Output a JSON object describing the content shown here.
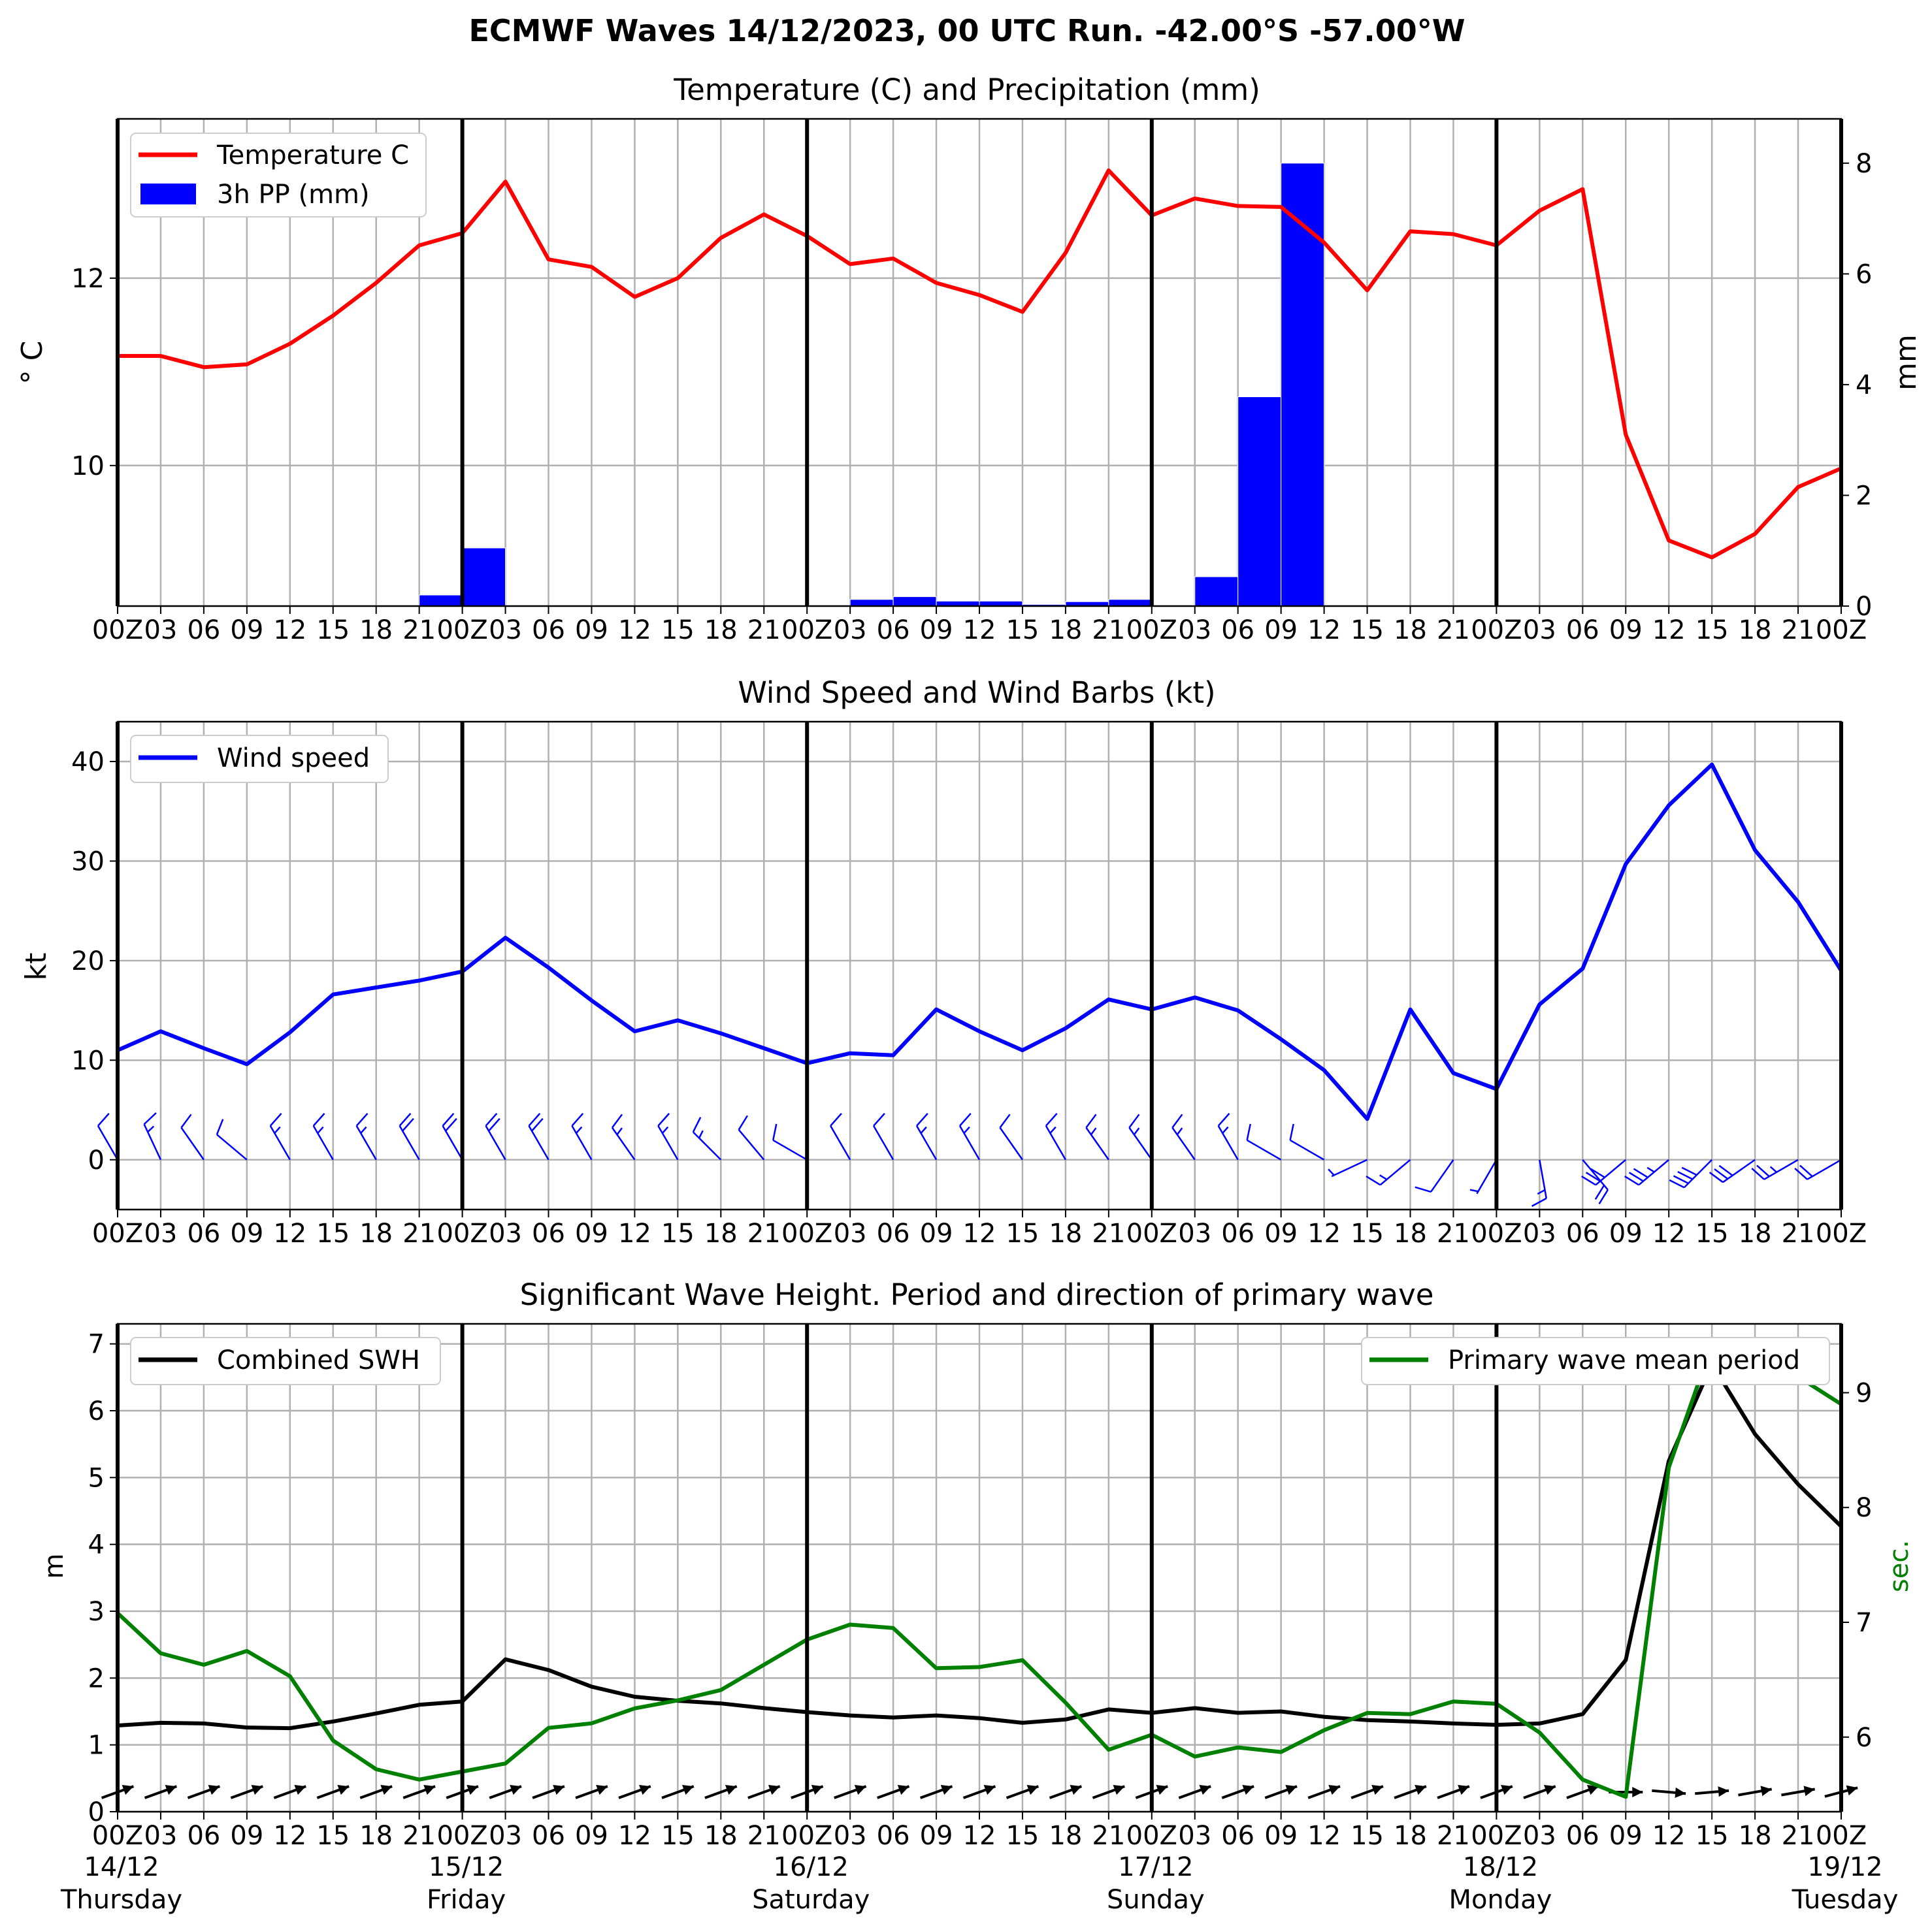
{
  "title": "ECMWF Waves 14/12/2023, 00 UTC Run. -42.00°S -57.00°W",
  "colors": {
    "temperature": "#ff0000",
    "precip": "#0000ff",
    "wind": "#0000ff",
    "swh": "#000000",
    "period": "#008000",
    "grid": "#b0b0b0"
  },
  "xticks": [
    "00Z",
    "03",
    "06",
    "09",
    "12",
    "15",
    "18",
    "21",
    "00Z",
    "03",
    "06",
    "09",
    "12",
    "15",
    "18",
    "21",
    "00Z",
    "03",
    "06",
    "09",
    "12",
    "15",
    "18",
    "21",
    "00Z",
    "03",
    "06",
    "09",
    "12",
    "15",
    "18",
    "21",
    "00Z",
    "03",
    "06",
    "09",
    "12",
    "15",
    "18",
    "21",
    "00Z"
  ],
  "days": [
    {
      "date": "14/12",
      "weekday": "Thursday"
    },
    {
      "date": "15/12",
      "weekday": "Friday"
    },
    {
      "date": "16/12",
      "weekday": "Saturday"
    },
    {
      "date": "17/12",
      "weekday": "Sunday"
    },
    {
      "date": "18/12",
      "weekday": "Monday"
    },
    {
      "date": "19/12",
      "weekday": "Tuesday"
    }
  ],
  "chart_data": [
    {
      "type": "line+bar",
      "title": "Temperature (C) and Precipitation (mm)",
      "ylabel": "° C",
      "ylabel_right": "mm",
      "x_hours": [
        0,
        3,
        6,
        9,
        12,
        15,
        18,
        21,
        24,
        27,
        30,
        33,
        36,
        39,
        42,
        45,
        48,
        51,
        54,
        57,
        60,
        63,
        66,
        69,
        72,
        75,
        78,
        81,
        84,
        87,
        90,
        93,
        96,
        99,
        102,
        105,
        108,
        111,
        114,
        117,
        120
      ],
      "ylim": [
        8.5,
        13.7
      ],
      "yticks": [
        10,
        12
      ],
      "ylim_right": [
        0,
        8.8
      ],
      "yticks_right": [
        0,
        2,
        4,
        6,
        8
      ],
      "legend": [
        "Temperature C",
        "3h PP (mm)"
      ],
      "series": [
        {
          "name": "Temperature C",
          "values": [
            11.17,
            11.17,
            11.05,
            11.08,
            11.3,
            11.6,
            11.95,
            12.35,
            12.48,
            13.03,
            12.2,
            12.12,
            11.8,
            12.0,
            12.43,
            12.68,
            12.45,
            12.15,
            12.21,
            11.95,
            11.82,
            11.64,
            12.27,
            13.15,
            12.67,
            12.85,
            12.77,
            12.76,
            12.38,
            11.87,
            12.5,
            12.47,
            12.35,
            12.72,
            12.95,
            10.33,
            9.2,
            9.02,
            9.27,
            9.77,
            9.97
          ]
        },
        {
          "name": "3h PP (mm)",
          "values": [
            0,
            0,
            0,
            0,
            0,
            0,
            0,
            0.2,
            1.05,
            0,
            0,
            0,
            0,
            0,
            0,
            0,
            0,
            0.12,
            0.17,
            0.09,
            0.09,
            0.03,
            0.08,
            0.12,
            0,
            0.53,
            3.78,
            8.0,
            0,
            0,
            0,
            0,
            0,
            0,
            0,
            0,
            0,
            0,
            0,
            0
          ]
        }
      ]
    },
    {
      "type": "line",
      "title": "Wind Speed and Wind Barbs (kt)",
      "ylabel": "kt",
      "x_hours": [
        0,
        3,
        6,
        9,
        12,
        15,
        18,
        21,
        24,
        27,
        30,
        33,
        36,
        39,
        42,
        45,
        48,
        51,
        54,
        57,
        60,
        63,
        66,
        69,
        72,
        75,
        78,
        81,
        84,
        87,
        90,
        93,
        96,
        99,
        102,
        105,
        108,
        111,
        114,
        117,
        120
      ],
      "ylim": [
        -5,
        44
      ],
      "yticks": [
        0,
        10,
        20,
        30,
        40
      ],
      "legend": [
        "Wind speed"
      ],
      "series": [
        {
          "name": "Wind speed",
          "values": [
            11.0,
            12.9,
            11.2,
            9.6,
            12.8,
            16.6,
            17.3,
            18.0,
            18.9,
            22.3,
            19.3,
            16.0,
            12.9,
            14.0,
            12.7,
            11.2,
            9.7,
            10.7,
            10.5,
            15.1,
            12.9,
            11.0,
            13.2,
            16.1,
            15.1,
            16.3,
            15.0,
            12.1,
            9.0,
            4.1,
            15.1,
            8.7,
            7.1,
            15.6,
            19.2,
            29.7,
            35.6,
            39.7,
            31.1,
            25.9,
            19.0
          ]
        }
      ],
      "barb_dir_deg": [
        330,
        335,
        325,
        310,
        330,
        330,
        330,
        330,
        330,
        330,
        330,
        330,
        325,
        330,
        315,
        320,
        300,
        330,
        330,
        330,
        330,
        325,
        330,
        325,
        325,
        325,
        330,
        300,
        300,
        245,
        230,
        215,
        210,
        170,
        140,
        230,
        230,
        225,
        235,
        240,
        240
      ]
    },
    {
      "type": "line",
      "title": "Significant Wave Height. Period and direction of primary wave",
      "ylabel": "m",
      "ylabel_right": "sec.",
      "x_hours": [
        0,
        3,
        6,
        9,
        12,
        15,
        18,
        21,
        24,
        27,
        30,
        33,
        36,
        39,
        42,
        45,
        48,
        51,
        54,
        57,
        60,
        63,
        66,
        69,
        72,
        75,
        78,
        81,
        84,
        87,
        90,
        93,
        96,
        99,
        102,
        105,
        108,
        111,
        114,
        117,
        120
      ],
      "ylim": [
        0,
        7.3
      ],
      "yticks": [
        0,
        1,
        2,
        3,
        4,
        5,
        6,
        7
      ],
      "ylim_right": [
        5.35,
        9.6
      ],
      "yticks_right": [
        6,
        7,
        8,
        9
      ],
      "legend": [
        "Combined SWH",
        "Primary wave mean period"
      ],
      "series": [
        {
          "name": "Combined SWH",
          "values": [
            1.29,
            1.33,
            1.32,
            1.26,
            1.25,
            1.35,
            1.47,
            1.6,
            1.65,
            2.28,
            2.12,
            1.87,
            1.72,
            1.66,
            1.62,
            1.55,
            1.49,
            1.44,
            1.41,
            1.44,
            1.4,
            1.33,
            1.38,
            1.53,
            1.48,
            1.55,
            1.48,
            1.5,
            1.42,
            1.37,
            1.35,
            1.32,
            1.3,
            1.32,
            1.46,
            2.27,
            5.25,
            6.7,
            5.65,
            4.9,
            4.27
          ]
        },
        {
          "name": "Primary wave mean period",
          "values": [
            7.08,
            6.73,
            6.63,
            6.75,
            6.53,
            5.97,
            5.72,
            5.63,
            5.7,
            5.77,
            6.08,
            6.12,
            6.25,
            6.32,
            6.41,
            6.63,
            6.85,
            6.98,
            6.95,
            6.6,
            6.61,
            6.67,
            6.3,
            5.89,
            6.02,
            5.83,
            5.91,
            5.87,
            6.06,
            6.21,
            6.2,
            6.31,
            6.29,
            6.04,
            5.63,
            5.48,
            8.35,
            9.42,
            9.43,
            9.14,
            8.9
          ]
        }
      ],
      "wave_dir_deg": [
        250,
        250,
        250,
        250,
        250,
        250,
        250,
        250,
        250,
        250,
        250,
        250,
        250,
        250,
        250,
        250,
        250,
        250,
        250,
        250,
        250,
        250,
        250,
        250,
        250,
        250,
        250,
        250,
        250,
        250,
        250,
        250,
        250,
        250,
        250,
        270,
        275,
        265,
        260,
        260,
        255
      ]
    }
  ]
}
